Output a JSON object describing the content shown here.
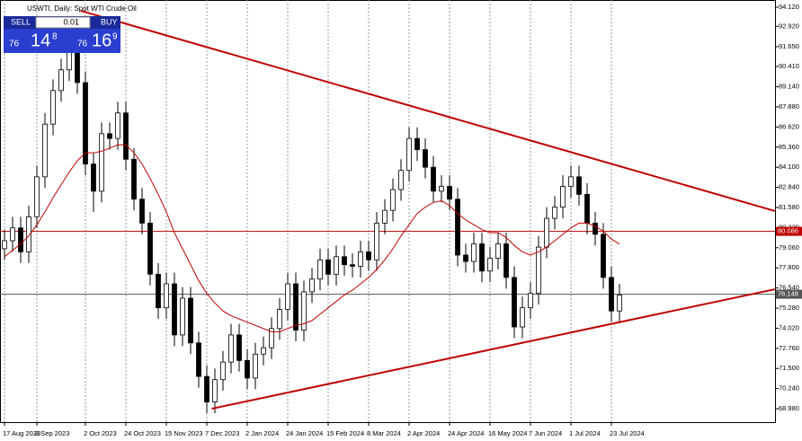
{
  "chart_data": {
    "type": "candlestick",
    "title": "USWTI, Daily:  Spot WTI Crude Oil",
    "categories": [
      "17 Aug 2023",
      null,
      null,
      null,
      "8 Sep 2023",
      null,
      null,
      null,
      null,
      null,
      "2 Oct 2023",
      null,
      null,
      null,
      null,
      "24 Oct 2023",
      null,
      null,
      null,
      null,
      "15 Nov 2023",
      null,
      null,
      null,
      null,
      "7 Dec 2023",
      null,
      null,
      null,
      null,
      "2 Jan 2024",
      null,
      null,
      null,
      null,
      "24 Jan 2024",
      null,
      null,
      null,
      null,
      "15 Feb 2024",
      null,
      null,
      null,
      null,
      "8 Mar 2024",
      null,
      null,
      null,
      null,
      "2 Apr 2024",
      null,
      null,
      null,
      null,
      "24 Apr 2024",
      null,
      null,
      null,
      null,
      "16 May 2024",
      null,
      null,
      null,
      null,
      "7 Jun 2024",
      null,
      null,
      null,
      null,
      "1 Jul 2024",
      null,
      null,
      null,
      null,
      "23 Jul 2024",
      null
    ],
    "open": [
      79.0,
      79.5,
      80.3,
      78.8,
      81.0,
      83.5,
      86.8,
      88.9,
      90.2,
      91.7,
      89.4,
      84.3,
      82.6,
      86.2,
      85.9,
      87.5,
      84.6,
      82.1,
      80.6,
      77.4,
      75.3,
      76.8,
      73.6,
      75.9,
      73.1,
      71.0,
      69.4,
      70.8,
      71.9,
      73.6,
      72.0,
      70.9,
      72.4,
      72.8,
      74.0,
      75.2,
      76.8,
      73.9,
      76.3,
      77.1,
      78.3,
      77.4,
      78.5,
      78.0,
      77.9,
      78.8,
      78.3,
      80.6,
      81.4,
      82.7,
      83.9,
      85.9,
      85.2,
      84.1,
      82.6,
      82.9,
      82.1,
      78.6,
      78.2,
      79.3,
      77.6,
      78.4,
      79.3,
      77.2,
      74.1,
      75.3,
      76.2,
      79.1,
      80.9,
      81.6,
      82.9,
      83.5,
      82.4,
      80.6,
      79.9,
      77.2,
      75.1
    ],
    "high": [
      80.2,
      81.0,
      81.0,
      81.7,
      84.2,
      87.5,
      89.6,
      90.9,
      93.4,
      92.4,
      90.1,
      85.0,
      86.9,
      86.9,
      88.2,
      88.2,
      85.3,
      82.8,
      81.3,
      78.1,
      77.5,
      77.5,
      76.6,
      76.6,
      73.8,
      71.7,
      71.5,
      72.6,
      74.3,
      74.3,
      72.7,
      73.1,
      73.5,
      74.7,
      75.9,
      77.5,
      77.5,
      77.0,
      77.8,
      79.0,
      79.0,
      79.2,
      79.2,
      78.7,
      79.5,
      79.5,
      81.3,
      82.1,
      83.4,
      84.6,
      86.6,
      86.6,
      85.9,
      84.8,
      83.6,
      83.6,
      82.8,
      79.3,
      80.0,
      80.0,
      79.1,
      80.0,
      80.0,
      77.9,
      76.0,
      76.9,
      79.8,
      81.6,
      82.3,
      83.6,
      84.2,
      84.2,
      83.1,
      81.3,
      80.6,
      77.9,
      76.8
    ],
    "low": [
      78.3,
      78.8,
      78.1,
      78.1,
      80.3,
      82.8,
      86.1,
      88.2,
      89.5,
      88.7,
      83.6,
      81.3,
      81.9,
      85.2,
      85.2,
      83.9,
      81.4,
      79.9,
      76.7,
      74.6,
      74.6,
      72.9,
      72.9,
      72.4,
      70.3,
      68.7,
      68.7,
      70.1,
      71.2,
      71.3,
      70.2,
      70.2,
      71.7,
      72.1,
      73.3,
      74.5,
      73.2,
      73.2,
      75.6,
      76.4,
      76.7,
      76.7,
      77.3,
      77.2,
      77.2,
      77.6,
      77.6,
      79.9,
      80.7,
      82.0,
      83.2,
      84.5,
      83.4,
      81.9,
      81.9,
      81.4,
      77.9,
      77.5,
      77.5,
      76.9,
      76.9,
      77.7,
      76.5,
      73.4,
      73.4,
      74.6,
      75.5,
      78.4,
      80.2,
      80.9,
      82.2,
      81.7,
      79.9,
      79.2,
      76.5,
      74.4,
      74.4
    ],
    "close": [
      79.5,
      80.3,
      78.8,
      81.0,
      83.5,
      86.8,
      88.9,
      90.2,
      91.7,
      89.4,
      84.3,
      82.6,
      86.2,
      85.9,
      87.5,
      84.6,
      82.1,
      80.6,
      77.4,
      75.3,
      76.8,
      73.6,
      75.9,
      73.1,
      71.0,
      69.4,
      70.8,
      71.9,
      73.6,
      72.0,
      70.9,
      72.4,
      72.8,
      74.0,
      75.2,
      76.8,
      73.9,
      76.3,
      77.1,
      78.3,
      77.4,
      78.5,
      78.0,
      77.9,
      78.8,
      78.3,
      80.6,
      81.4,
      82.7,
      83.9,
      85.9,
      85.2,
      84.1,
      82.6,
      82.9,
      82.1,
      78.6,
      78.2,
      79.3,
      77.6,
      78.4,
      79.3,
      77.2,
      74.1,
      75.3,
      76.2,
      79.1,
      80.9,
      81.6,
      82.9,
      83.5,
      82.4,
      80.6,
      79.9,
      77.2,
      75.1,
      76.1
    ],
    "ma": {
      "color": "#c00000",
      "values": [
        78.5,
        78.9,
        79.3,
        79.8,
        80.5,
        81.3,
        82.2,
        83.0,
        83.8,
        84.5,
        85.0,
        85.0,
        85.1,
        85.3,
        85.5,
        85.5,
        85.0,
        84.3,
        83.4,
        82.4,
        81.3,
        80.0,
        79.0,
        78.0,
        77.0,
        76.2,
        75.6,
        75.1,
        74.8,
        74.6,
        74.4,
        74.2,
        74.0,
        73.8,
        73.8,
        74.0,
        74.2,
        74.3,
        74.5,
        74.9,
        75.3,
        75.7,
        76.1,
        76.4,
        76.8,
        77.2,
        77.7,
        78.3,
        79.0,
        79.8,
        80.5,
        81.2,
        81.6,
        81.9,
        82.0,
        81.7,
        81.2,
        80.8,
        80.5,
        80.2,
        80.0,
        80.0,
        79.7,
        79.2,
        78.8,
        78.6,
        78.8,
        79.1,
        79.5,
        79.9,
        80.3,
        80.6,
        80.6,
        80.4,
        80.1,
        79.6,
        79.3
      ]
    },
    "trendlines": [
      {
        "color": "#c00000",
        "x": [
          9.4,
          95.2
        ],
        "y": [
          93.9,
          81.36
        ]
      },
      {
        "color": "#c00000",
        "x": [
          25.6,
          95.2
        ],
        "y": [
          68.98,
          76.46
        ]
      }
    ],
    "hlines": [
      {
        "value": 80.086,
        "color": "#c00000"
      },
      {
        "value": 76.148,
        "color": "#555555"
      }
    ],
    "ylim": [
      68.14,
      94.57
    ],
    "yticks": [
      {
        "value": 94.12,
        "label": "94.120"
      },
      {
        "value": 92.92,
        "label": "92.920"
      },
      {
        "value": 91.65,
        "label": "91.650"
      },
      {
        "value": 90.41,
        "label": "90.410"
      },
      {
        "value": 89.14,
        "label": "89.140"
      },
      {
        "value": 87.88,
        "label": "87.880"
      },
      {
        "value": 86.62,
        "label": "86.620"
      },
      {
        "value": 85.36,
        "label": "85.360"
      },
      {
        "value": 84.1,
        "label": "84.100"
      },
      {
        "value": 82.84,
        "label": "82.840"
      },
      {
        "value": 81.58,
        "label": "81.580"
      },
      {
        "value": 80.32,
        "label": "80.320"
      },
      {
        "value": 79.06,
        "label": "79.060"
      },
      {
        "value": 77.8,
        "label": "77.800"
      },
      {
        "value": 76.54,
        "label": "76.540"
      },
      {
        "value": 75.28,
        "label": "75.280"
      },
      {
        "value": 74.02,
        "label": "74.020"
      },
      {
        "value": 72.76,
        "label": "72.760"
      },
      {
        "value": 71.5,
        "label": "71.500"
      },
      {
        "value": 70.24,
        "label": "70.240"
      },
      {
        "value": 68.98,
        "label": "68.980"
      }
    ],
    "grid": true
  },
  "trade_panel": {
    "sell": "SELL",
    "buy": "BUY",
    "lot": "0.01",
    "bid": [
      "76",
      "14",
      "8"
    ],
    "ask": [
      "76",
      "16",
      "9"
    ]
  }
}
